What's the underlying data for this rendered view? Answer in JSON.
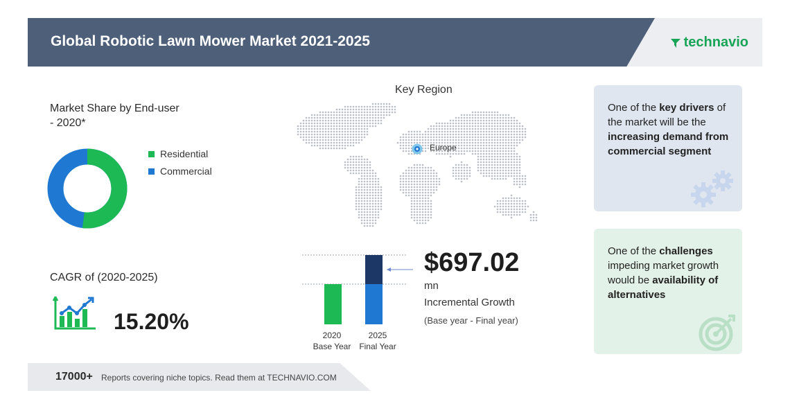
{
  "header": {
    "title": "Global Robotic Lawn Mower Market 2021-2025",
    "logo_text": "technavio"
  },
  "market_share": {
    "title_line1": "Market Share by End-user",
    "title_line2": "- 2020*",
    "legend": [
      {
        "label": "Residential",
        "color": "#1db954"
      },
      {
        "label": "Commercial",
        "color": "#1f78d1"
      }
    ]
  },
  "cagr": {
    "label": "CAGR of (2020-2025)",
    "value": "15.20%"
  },
  "region": {
    "title": "Key Region",
    "highlight": "Europe"
  },
  "growth": {
    "value": "$697.02",
    "unit": "mn",
    "label": "Incremental Growth",
    "span": "(Base year - Final year)",
    "bars": [
      {
        "year": "2020",
        "caption": "Base Year"
      },
      {
        "year": "2025",
        "caption": "Final Year"
      }
    ]
  },
  "drivers": {
    "prefix": "One of the ",
    "bold1": "key drivers",
    "middle": " of the market will be the ",
    "bold2": "increasing demand from commercial segment"
  },
  "challenges": {
    "prefix": "One of the ",
    "bold1": "challenges",
    "middle": " impeding market growth would be ",
    "bold2": "availability of alternatives"
  },
  "footer": {
    "count": "17000+",
    "text": "Reports covering niche topics. Read them at TECHNAVIO.COM"
  },
  "colors": {
    "header": "#4e5f79",
    "green": "#1db954",
    "blue": "#1f78d1",
    "navy": "#1c3766"
  }
}
